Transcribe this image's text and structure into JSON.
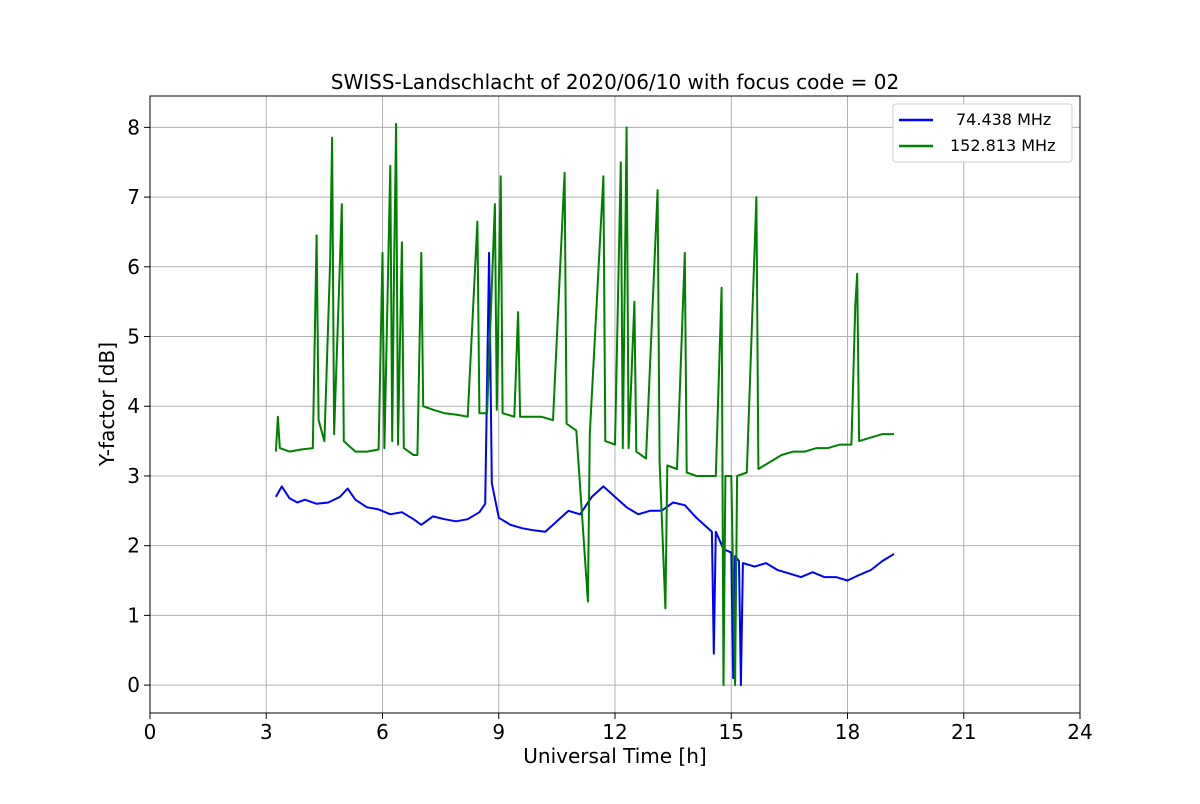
{
  "chart_data": {
    "type": "line",
    "title": "SWISS-Landschlacht of 2020/06/10 with focus code = 02",
    "xlabel": "Universal Time [h]",
    "ylabel": "Y-factor [dB]",
    "xlim": [
      0,
      24
    ],
    "ylim": [
      -0.4,
      8.45
    ],
    "xticks": [
      0,
      3,
      6,
      9,
      12,
      15,
      18,
      21,
      24
    ],
    "yticks": [
      0,
      1,
      2,
      3,
      4,
      5,
      6,
      7,
      8
    ],
    "grid": true,
    "legend_position": "top-right",
    "series": [
      {
        "name": "74.438 MHz",
        "color": "#0000ff",
        "points": [
          [
            3.25,
            2.7
          ],
          [
            3.4,
            2.85
          ],
          [
            3.6,
            2.68
          ],
          [
            3.8,
            2.62
          ],
          [
            4.0,
            2.66
          ],
          [
            4.3,
            2.6
          ],
          [
            4.6,
            2.62
          ],
          [
            4.9,
            2.7
          ],
          [
            5.1,
            2.82
          ],
          [
            5.3,
            2.66
          ],
          [
            5.6,
            2.55
          ],
          [
            5.9,
            2.52
          ],
          [
            6.2,
            2.45
          ],
          [
            6.5,
            2.48
          ],
          [
            6.8,
            2.38
          ],
          [
            7.0,
            2.3
          ],
          [
            7.3,
            2.42
          ],
          [
            7.6,
            2.38
          ],
          [
            7.9,
            2.35
          ],
          [
            8.2,
            2.38
          ],
          [
            8.5,
            2.48
          ],
          [
            8.65,
            2.6
          ],
          [
            8.75,
            6.2
          ],
          [
            8.82,
            2.9
          ],
          [
            9.0,
            2.4
          ],
          [
            9.3,
            2.3
          ],
          [
            9.6,
            2.25
          ],
          [
            9.9,
            2.22
          ],
          [
            10.2,
            2.2
          ],
          [
            10.5,
            2.35
          ],
          [
            10.8,
            2.5
          ],
          [
            11.1,
            2.45
          ],
          [
            11.4,
            2.7
          ],
          [
            11.7,
            2.85
          ],
          [
            12.0,
            2.7
          ],
          [
            12.3,
            2.55
          ],
          [
            12.6,
            2.45
          ],
          [
            12.9,
            2.5
          ],
          [
            13.2,
            2.5
          ],
          [
            13.5,
            2.62
          ],
          [
            13.8,
            2.58
          ],
          [
            14.1,
            2.4
          ],
          [
            14.3,
            2.3
          ],
          [
            14.5,
            2.2
          ],
          [
            14.55,
            0.45
          ],
          [
            14.6,
            2.2
          ],
          [
            14.8,
            1.95
          ],
          [
            15.0,
            1.9
          ],
          [
            15.05,
            0.1
          ],
          [
            15.1,
            1.85
          ],
          [
            15.2,
            1.78
          ],
          [
            15.25,
            0.0
          ],
          [
            15.3,
            1.75
          ],
          [
            15.6,
            1.7
          ],
          [
            15.9,
            1.75
          ],
          [
            16.2,
            1.65
          ],
          [
            16.5,
            1.6
          ],
          [
            16.8,
            1.55
          ],
          [
            17.1,
            1.62
          ],
          [
            17.4,
            1.55
          ],
          [
            17.7,
            1.55
          ],
          [
            18.0,
            1.5
          ],
          [
            18.3,
            1.58
          ],
          [
            18.6,
            1.65
          ],
          [
            18.9,
            1.78
          ],
          [
            19.2,
            1.88
          ]
        ]
      },
      {
        "name": "152.813 MHz",
        "color": "#008000",
        "points": [
          [
            3.25,
            3.35
          ],
          [
            3.3,
            3.85
          ],
          [
            3.35,
            3.4
          ],
          [
            3.6,
            3.35
          ],
          [
            3.9,
            3.38
          ],
          [
            4.2,
            3.4
          ],
          [
            4.3,
            6.45
          ],
          [
            4.35,
            3.8
          ],
          [
            4.5,
            3.5
          ],
          [
            4.65,
            6.1
          ],
          [
            4.7,
            7.85
          ],
          [
            4.75,
            3.6
          ],
          [
            4.9,
            6.05
          ],
          [
            4.95,
            6.9
          ],
          [
            5.0,
            3.5
          ],
          [
            5.3,
            3.35
          ],
          [
            5.6,
            3.35
          ],
          [
            5.9,
            3.38
          ],
          [
            6.0,
            6.2
          ],
          [
            6.05,
            3.4
          ],
          [
            6.2,
            7.45
          ],
          [
            6.25,
            3.5
          ],
          [
            6.3,
            6.0
          ],
          [
            6.35,
            8.05
          ],
          [
            6.4,
            3.45
          ],
          [
            6.5,
            6.35
          ],
          [
            6.55,
            3.4
          ],
          [
            6.8,
            3.3
          ],
          [
            6.9,
            3.3
          ],
          [
            7.0,
            6.2
          ],
          [
            7.05,
            4.0
          ],
          [
            7.3,
            3.95
          ],
          [
            7.6,
            3.9
          ],
          [
            7.9,
            3.88
          ],
          [
            8.2,
            3.85
          ],
          [
            8.45,
            6.65
          ],
          [
            8.5,
            3.9
          ],
          [
            8.7,
            3.9
          ],
          [
            8.9,
            6.9
          ],
          [
            8.95,
            3.95
          ],
          [
            9.05,
            7.3
          ],
          [
            9.1,
            3.9
          ],
          [
            9.4,
            3.85
          ],
          [
            9.5,
            5.35
          ],
          [
            9.55,
            3.85
          ],
          [
            9.8,
            3.85
          ],
          [
            10.1,
            3.85
          ],
          [
            10.4,
            3.8
          ],
          [
            10.7,
            7.35
          ],
          [
            10.75,
            3.75
          ],
          [
            11.0,
            3.65
          ],
          [
            11.3,
            1.2
          ],
          [
            11.35,
            3.6
          ],
          [
            11.7,
            7.3
          ],
          [
            11.75,
            3.5
          ],
          [
            12.0,
            3.45
          ],
          [
            12.15,
            7.5
          ],
          [
            12.2,
            3.4
          ],
          [
            12.3,
            8.0
          ],
          [
            12.35,
            3.4
          ],
          [
            12.5,
            5.5
          ],
          [
            12.55,
            3.35
          ],
          [
            12.8,
            3.25
          ],
          [
            13.1,
            7.1
          ],
          [
            13.15,
            3.2
          ],
          [
            13.3,
            1.1
          ],
          [
            13.35,
            3.15
          ],
          [
            13.6,
            3.1
          ],
          [
            13.8,
            6.2
          ],
          [
            13.85,
            3.05
          ],
          [
            14.1,
            3.0
          ],
          [
            14.4,
            3.0
          ],
          [
            14.6,
            3.0
          ],
          [
            14.75,
            5.7
          ],
          [
            14.8,
            0.0
          ],
          [
            14.85,
            3.0
          ],
          [
            15.0,
            3.0
          ],
          [
            15.1,
            0.0
          ],
          [
            15.15,
            3.0
          ],
          [
            15.4,
            3.05
          ],
          [
            15.65,
            7.0
          ],
          [
            15.7,
            3.1
          ],
          [
            16.0,
            3.2
          ],
          [
            16.3,
            3.3
          ],
          [
            16.6,
            3.35
          ],
          [
            16.9,
            3.35
          ],
          [
            17.2,
            3.4
          ],
          [
            17.5,
            3.4
          ],
          [
            17.8,
            3.45
          ],
          [
            18.1,
            3.45
          ],
          [
            18.2,
            5.45
          ],
          [
            18.25,
            5.9
          ],
          [
            18.3,
            3.5
          ],
          [
            18.6,
            3.55
          ],
          [
            18.9,
            3.6
          ],
          [
            19.2,
            3.6
          ]
        ]
      }
    ]
  }
}
